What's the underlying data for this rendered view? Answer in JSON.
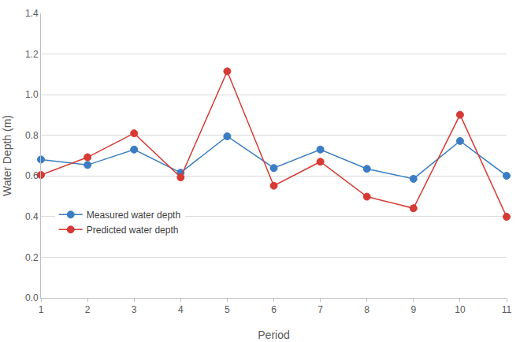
{
  "chart_data": {
    "type": "line",
    "x_label": "Period",
    "y_label": "Water Depth (m)",
    "x": [
      1,
      2,
      3,
      4,
      5,
      6,
      7,
      8,
      9,
      10,
      11
    ],
    "series": [
      {
        "name": "Measured water depth",
        "color": "#3b7dc4",
        "marker": "circle",
        "values": [
          0.681,
          0.654,
          0.73,
          0.616,
          0.795,
          0.639,
          0.73,
          0.635,
          0.586,
          0.772,
          0.601
        ]
      },
      {
        "name": "Predicted water depth",
        "color": "#d63a35",
        "marker": "circle",
        "values": [
          0.605,
          0.692,
          0.81,
          0.593,
          1.115,
          0.552,
          0.67,
          0.498,
          0.441,
          0.901,
          0.399
        ]
      }
    ],
    "xlim": [
      1,
      11
    ],
    "xticks": [
      1,
      2,
      3,
      4,
      5,
      6,
      7,
      8,
      9,
      10,
      11
    ],
    "ylim": [
      0,
      1.4
    ],
    "yticks": [
      {
        "value": 0,
        "label": "0.0"
      },
      0.2,
      0.4,
      0.6,
      0.8,
      {
        "value": 1,
        "label": "1.0"
      },
      1.2,
      1.4
    ],
    "grid": true,
    "legend": "lower left"
  }
}
